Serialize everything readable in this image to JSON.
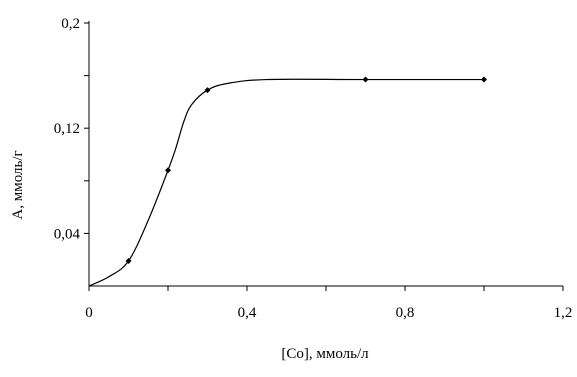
{
  "chart_data": {
    "type": "line",
    "title": "",
    "xlabel": "[Co], ммоль/л",
    "ylabel": "А, ммоль/г",
    "xlim": [
      0,
      1.2
    ],
    "ylim": [
      0,
      0.2
    ],
    "grid": false,
    "x_ticks": [
      "0",
      "0,4",
      "0,8",
      "1,2"
    ],
    "x_tick_values": [
      0,
      0.4,
      0.8,
      1.2
    ],
    "y_ticks": [
      "0,04",
      "0,12",
      "0,2"
    ],
    "y_tick_values": [
      0.04,
      0.12,
      0.2
    ],
    "y_minor_ticks": [
      0.08,
      0.16
    ],
    "x_minor_ticks": [
      0.2,
      0.6,
      1.0
    ],
    "series": [
      {
        "x": [
          0,
          0.1,
          0.2,
          0.3,
          0.7,
          1.0
        ],
        "y": [
          0.0,
          0.019,
          0.088,
          0.149,
          0.157,
          0.157
        ],
        "curve": [
          [
            0,
            0.0
          ],
          [
            0.05,
            0.007
          ],
          [
            0.1,
            0.019
          ],
          [
            0.15,
            0.05
          ],
          [
            0.2,
            0.088
          ],
          [
            0.22,
            0.105
          ],
          [
            0.24,
            0.125
          ],
          [
            0.26,
            0.138
          ],
          [
            0.3,
            0.149
          ],
          [
            0.35,
            0.154
          ],
          [
            0.45,
            0.157
          ],
          [
            0.7,
            0.157
          ],
          [
            1.0,
            0.157
          ]
        ]
      }
    ]
  }
}
